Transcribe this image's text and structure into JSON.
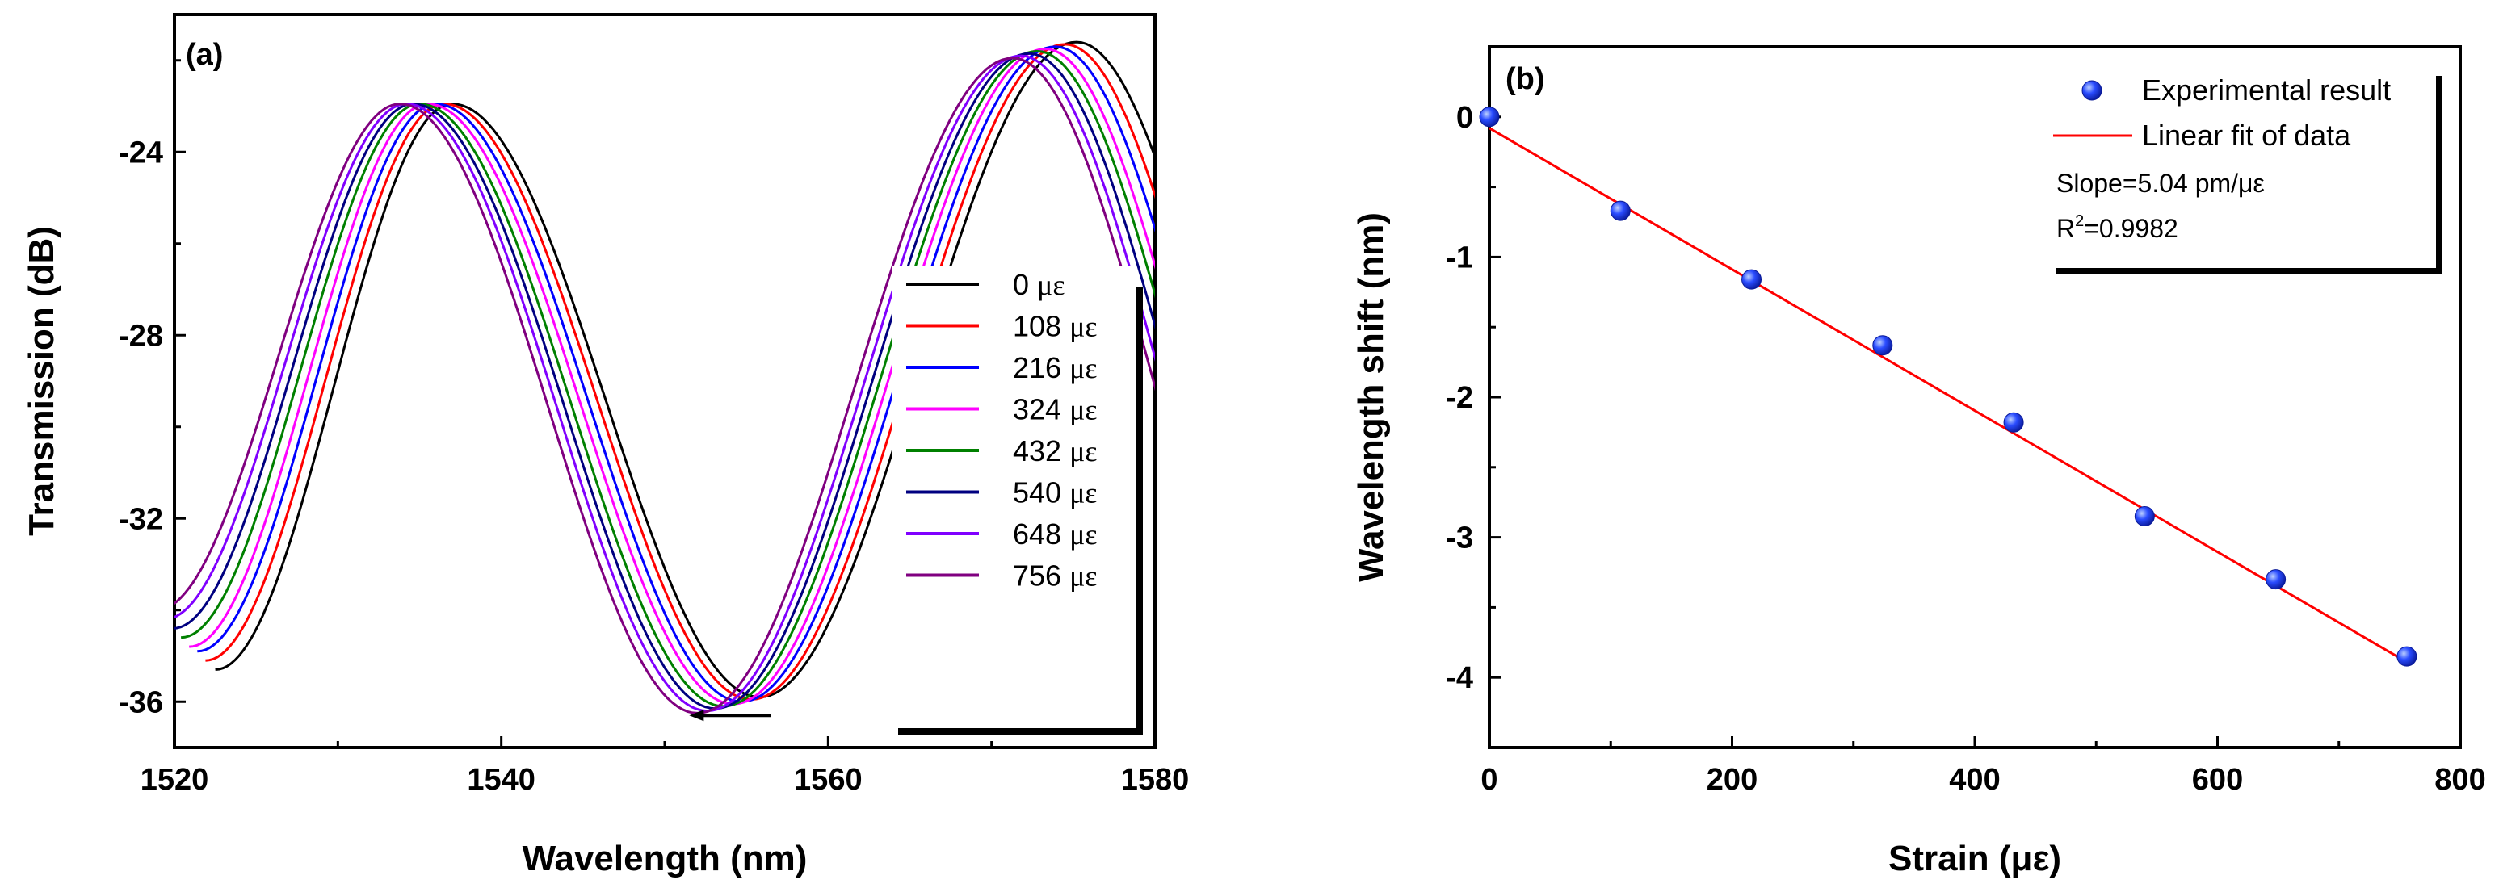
{
  "chart_data": [
    {
      "panel": "(a)",
      "type": "line",
      "xlabel": "Wavelength (nm)",
      "ylabel": "Transmission (dB)",
      "xlim": [
        1520,
        1580
      ],
      "ylim": [
        -37,
        -21
      ],
      "xticks": [
        1520,
        1540,
        1560,
        1580
      ],
      "yticks": [
        -24,
        -28,
        -32,
        -36
      ],
      "grid": false,
      "legend_position": "right",
      "unit": "με",
      "series": [
        {
          "name": "0",
          "color": "#000000",
          "peak1": [
            1537.0,
            -22.95
          ],
          "dip1": [
            1522.5,
            -35.3
          ],
          "dip2": [
            1555.8,
            -35.9
          ],
          "peak2": [
            1575.2,
            -21.6
          ]
        },
        {
          "name": "108",
          "color": "#ff0000",
          "peak1": [
            1536.5,
            -22.95
          ],
          "dip1": [
            1521.9,
            -35.1
          ],
          "dip2": [
            1555.3,
            -35.95
          ],
          "peak2": [
            1574.5,
            -21.65
          ]
        },
        {
          "name": "216",
          "color": "#0000ff",
          "peak1": [
            1536.0,
            -22.95
          ],
          "dip1": [
            1521.4,
            -34.9
          ],
          "dip2": [
            1554.7,
            -36.0
          ],
          "peak2": [
            1573.9,
            -21.7
          ]
        },
        {
          "name": "324",
          "color": "#ff00ff",
          "peak1": [
            1535.5,
            -22.95
          ],
          "dip1": [
            1520.9,
            -34.8
          ],
          "dip2": [
            1554.2,
            -36.05
          ],
          "peak2": [
            1573.3,
            -21.75
          ]
        },
        {
          "name": "432",
          "color": "#008000",
          "peak1": [
            1535.0,
            -22.95
          ],
          "dip1": [
            1520.4,
            -34.6
          ],
          "dip2": [
            1553.6,
            -36.1
          ],
          "peak2": [
            1572.8,
            -21.8
          ]
        },
        {
          "name": "540",
          "color": "#000080",
          "peak1": [
            1534.6,
            -22.95
          ],
          "dip1": [
            1519.9,
            -34.4
          ],
          "dip2": [
            1553.1,
            -36.15
          ],
          "peak2": [
            1572.3,
            -21.85
          ]
        },
        {
          "name": "648",
          "color": "#8000ff",
          "peak1": [
            1534.2,
            -22.95
          ],
          "dip1": [
            1519.4,
            -34.2
          ],
          "dip2": [
            1552.6,
            -36.2
          ],
          "peak2": [
            1571.8,
            -21.9
          ]
        },
        {
          "name": "756",
          "color": "#800080",
          "peak1": [
            1533.8,
            -22.95
          ],
          "dip1": [
            1518.9,
            -34.0
          ],
          "dip2": [
            1552.0,
            -36.25
          ],
          "peak2": [
            1571.3,
            -21.95
          ]
        }
      ],
      "annotation": {
        "type": "arrow",
        "direction": "left",
        "from": 1556.5,
        "to": 1551.5,
        "y": -36.3
      }
    },
    {
      "panel": "(b)",
      "type": "scatter",
      "xlabel": "Strain (με)",
      "ylabel": "Wavelength shift (nm)",
      "xlim": [
        0,
        800
      ],
      "ylim": [
        -4.5,
        0.5
      ],
      "xticks": [
        0,
        200,
        400,
        600,
        800
      ],
      "yticks": [
        0,
        -1,
        -2,
        -3,
        -4
      ],
      "grid": false,
      "legend_position": "top-right",
      "series": [
        {
          "name": "Experimental result",
          "color": "#1a3cff",
          "x": [
            0,
            108,
            216,
            324,
            432,
            540,
            648,
            756
          ],
          "y": [
            0,
            -0.67,
            -1.16,
            -1.63,
            -2.18,
            -2.85,
            -3.3,
            -3.85
          ]
        },
        {
          "name": "Linear fit of data",
          "color": "#ff0000",
          "type": "line",
          "slope": -0.00504,
          "intercept": -0.08,
          "x_range": [
            0,
            756
          ]
        }
      ],
      "annotations": {
        "slope": "Slope=5.04 pm/με",
        "r2_prefix": "R",
        "r2_sup": "2",
        "r2_value": "=0.9982"
      }
    }
  ]
}
